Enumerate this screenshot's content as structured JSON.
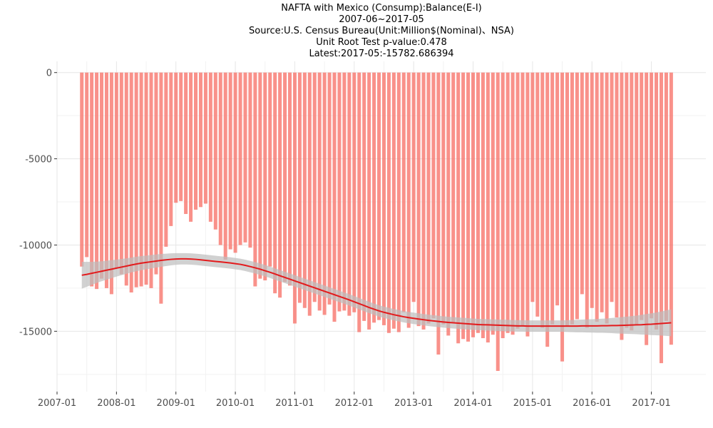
{
  "chart_data": {
    "type": "bar",
    "title": "NAFTA with Mexico (Consump):Balance(E-I)",
    "subtitle_lines": [
      "2007-06~2017-05",
      "Source:U.S. Census Bureau(Unit:Million$(Nominal)、NSA)",
      "Unit Root Test p-value:0.478",
      "Latest:2017-05:-15782.686394"
    ],
    "xlabel": "",
    "ylabel": "",
    "x_start": "2007-06",
    "x_end": "2017-05",
    "xlim": [
      "2007-01",
      "2017-12"
    ],
    "ylim": [
      -18500,
      650
    ],
    "y_ticks": [
      0,
      -5000,
      -10000,
      -15000
    ],
    "y_tick_labels": [
      "0",
      "-5000",
      "-10000",
      "-15000"
    ],
    "x_ticks": [
      "2007-01",
      "2008-01",
      "2009-01",
      "2010-01",
      "2011-01",
      "2012-01",
      "2013-01",
      "2014-01",
      "2015-01",
      "2016-01",
      "2017-01"
    ],
    "x_tick_labels": [
      "2007-01",
      "2008-01",
      "2009-01",
      "2010-01",
      "2011-01",
      "2012-01",
      "2013-01",
      "2014-01",
      "2015-01",
      "2016-01",
      "2017-01"
    ],
    "grid": true,
    "bar_color": "#f8766d",
    "trend_color": "#e31a1c",
    "band_color": "#bdbdbd",
    "values": [
      -11250,
      -10700,
      -12400,
      -12550,
      -11950,
      -12500,
      -12850,
      -11350,
      -11700,
      -12350,
      -12750,
      -12450,
      -12400,
      -12300,
      -12500,
      -11700,
      -13400,
      -10100,
      -8900,
      -7550,
      -7450,
      -8200,
      -8650,
      -7950,
      -7800,
      -7600,
      -8650,
      -9100,
      -10000,
      -10850,
      -10250,
      -10450,
      -10000,
      -9850,
      -10150,
      -12400,
      -11950,
      -12050,
      -11250,
      -12800,
      -13050,
      -12150,
      -12350,
      -14550,
      -13350,
      -13650,
      -14100,
      -13300,
      -13800,
      -14050,
      -13450,
      -14450,
      -13850,
      -13800,
      -14100,
      -13900,
      -15050,
      -14400,
      -14900,
      -14500,
      -14350,
      -14650,
      -15100,
      -14850,
      -15050,
      -13900,
      -14800,
      -13300,
      -14700,
      -14900,
      -14550,
      -14250,
      -16350,
      -14600,
      -15250,
      -14500,
      -15700,
      -15450,
      -15600,
      -15350,
      -15100,
      -15400,
      -15650,
      -15200,
      -17300,
      -15400,
      -15100,
      -15200,
      -14850,
      -14700,
      -15300,
      -13300,
      -14150,
      -14800,
      -15900,
      -14600,
      -13500,
      -16750,
      -14700,
      -14600,
      -14300,
      -12850,
      -14800,
      -13650,
      -14450,
      -13900,
      -14550,
      -13300,
      -14200,
      -15500,
      -14800,
      -14950,
      -14600,
      -14350,
      -15800,
      -14250,
      -14900,
      -16850,
      -14400,
      -15780
    ],
    "trend_values": [
      -11750,
      -11700,
      -11640,
      -11580,
      -11520,
      -11460,
      -11400,
      -11340,
      -11280,
      -11220,
      -11160,
      -11100,
      -11050,
      -11010,
      -10970,
      -10930,
      -10890,
      -10860,
      -10830,
      -10810,
      -10800,
      -10800,
      -10810,
      -10830,
      -10860,
      -10890,
      -10920,
      -10950,
      -10980,
      -11010,
      -11040,
      -11080,
      -11120,
      -11180,
      -11250,
      -11320,
      -11400,
      -11490,
      -11580,
      -11680,
      -11780,
      -11880,
      -11980,
      -12080,
      -12180,
      -12280,
      -12380,
      -12480,
      -12580,
      -12680,
      -12780,
      -12880,
      -12980,
      -13080,
      -13180,
      -13290,
      -13400,
      -13510,
      -13620,
      -13720,
      -13820,
      -13900,
      -13970,
      -14040,
      -14100,
      -14160,
      -14210,
      -14250,
      -14290,
      -14330,
      -14370,
      -14400,
      -14430,
      -14460,
      -14490,
      -14510,
      -14530,
      -14550,
      -14570,
      -14590,
      -14610,
      -14620,
      -14630,
      -14640,
      -14650,
      -14660,
      -14670,
      -14680,
      -14690,
      -14690,
      -14700,
      -14700,
      -14700,
      -14700,
      -14700,
      -14700,
      -14700,
      -14700,
      -14700,
      -14700,
      -14700,
      -14690,
      -14690,
      -14690,
      -14690,
      -14680,
      -14680,
      -14670,
      -14670,
      -14660,
      -14650,
      -14640,
      -14630,
      -14620,
      -14600,
      -14590,
      -14570,
      -14550,
      -14530,
      -14510
    ],
    "band_halfwidth": [
      780,
      720,
      670,
      620,
      580,
      550,
      520,
      490,
      470,
      450,
      430,
      420,
      410,
      400,
      390,
      380,
      370,
      360,
      350,
      340,
      330,
      330,
      330,
      330,
      330,
      330,
      330,
      330,
      330,
      330,
      330,
      330,
      330,
      330,
      330,
      330,
      330,
      330,
      330,
      330,
      330,
      330,
      330,
      330,
      330,
      330,
      330,
      330,
      330,
      330,
      330,
      330,
      330,
      330,
      330,
      330,
      330,
      330,
      330,
      330,
      330,
      330,
      330,
      330,
      330,
      330,
      330,
      330,
      330,
      330,
      330,
      330,
      330,
      330,
      330,
      330,
      330,
      330,
      330,
      330,
      330,
      330,
      330,
      330,
      330,
      330,
      330,
      330,
      330,
      330,
      330,
      330,
      330,
      330,
      330,
      330,
      330,
      330,
      340,
      350,
      360,
      370,
      380,
      390,
      400,
      410,
      420,
      440,
      460,
      480,
      500,
      520,
      540,
      570,
      600,
      630,
      660,
      700,
      740,
      780
    ]
  }
}
